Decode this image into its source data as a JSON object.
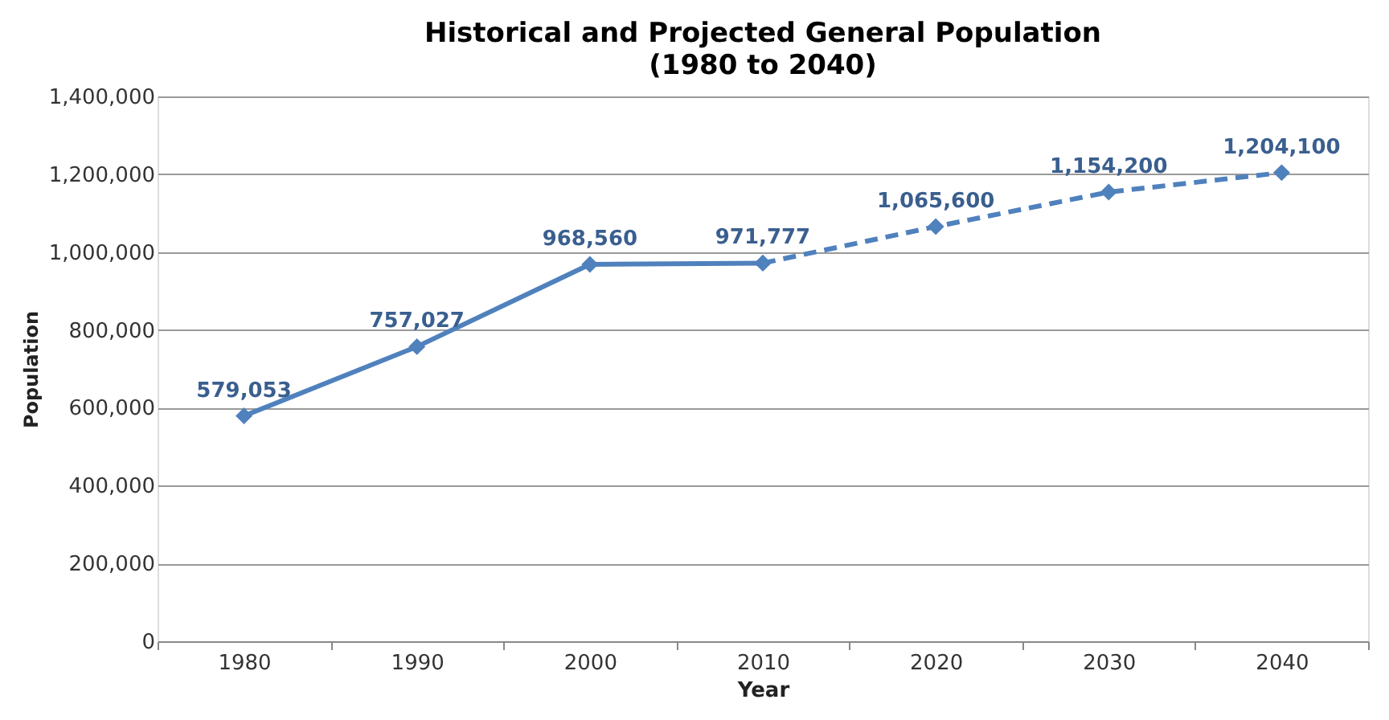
{
  "chart_data": {
    "type": "line",
    "title": "Historical and Projected General Population",
    "subtitle": "(1980 to 2040)",
    "xlabel": "Year",
    "ylabel": "Population",
    "categories": [
      "1980",
      "1990",
      "2000",
      "2010",
      "2020",
      "2030",
      "2040"
    ],
    "series": [
      {
        "color": "#4f81bd",
        "line_style": "solid",
        "values": [
          579053,
          757027,
          968560,
          971777,
          null,
          null,
          null
        ],
        "value_labels": [
          "579,053",
          "757,027",
          "968,560",
          "971,777",
          null,
          null,
          null
        ]
      },
      {
        "color": "#4f81bd",
        "line_style": "dashed",
        "values": [
          null,
          null,
          null,
          971777,
          1065600,
          1154200,
          1204100
        ],
        "value_labels": [
          null,
          null,
          null,
          null,
          "1,065,600",
          "1,154,200",
          "1,204,100"
        ]
      }
    ],
    "ylim": [
      0,
      1400000
    ],
    "yticks": [
      {
        "value": 0,
        "label": "0"
      },
      {
        "value": 200000,
        "label": "200,000"
      },
      {
        "value": 400000,
        "label": "400,000"
      },
      {
        "value": 600000,
        "label": "600,000"
      },
      {
        "value": 800000,
        "label": "800,000"
      },
      {
        "value": 1000000,
        "label": "1,000,000"
      },
      {
        "value": 1200000,
        "label": "1,200,000"
      },
      {
        "value": 1400000,
        "label": "1,400,000"
      }
    ],
    "grid": "y",
    "marker": "diamond"
  }
}
